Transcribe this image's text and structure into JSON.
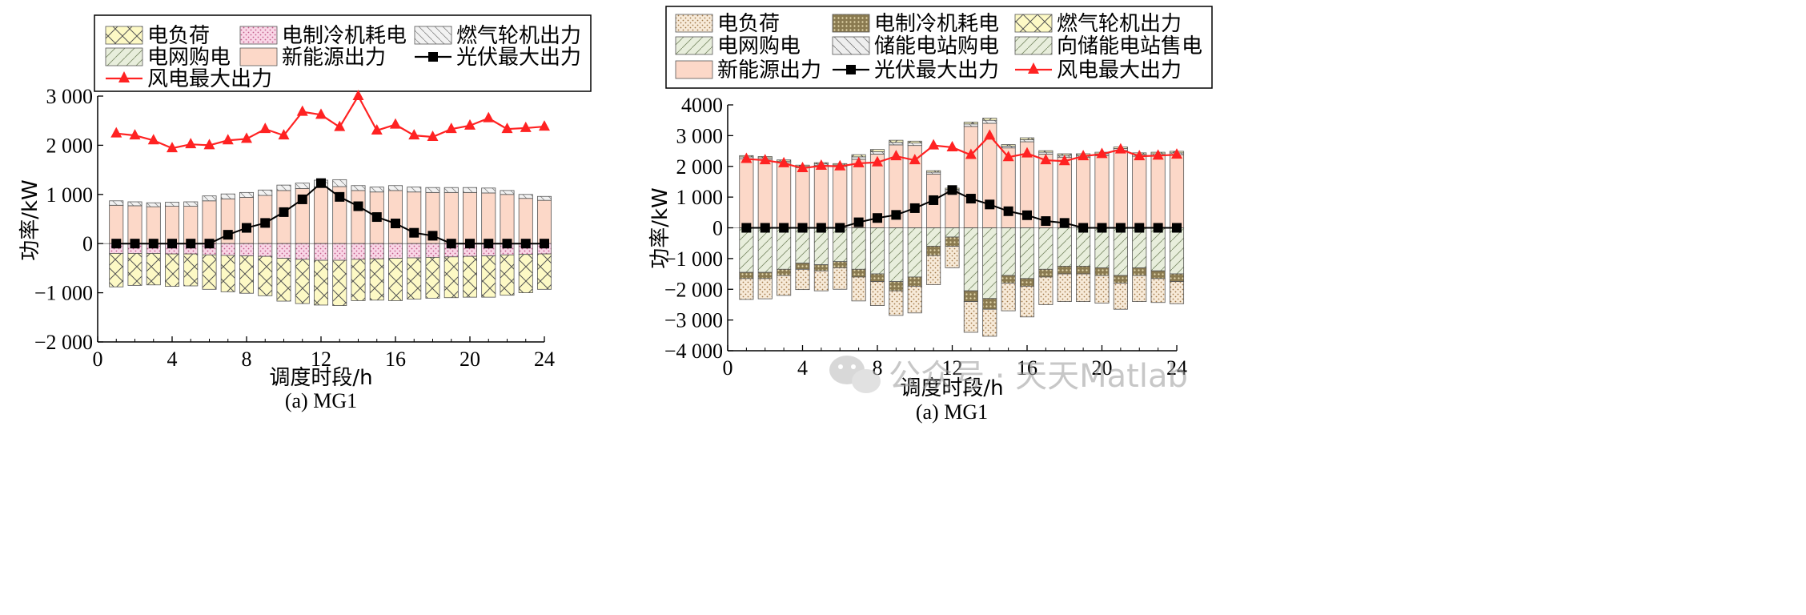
{
  "watermark": "公众号 · 天天Matlab",
  "chart_data": [
    {
      "type": "bar",
      "caption": "(a) MG1",
      "xlabel": "调度时段/h",
      "ylabel": "功率/kW",
      "xlim": [
        0,
        24
      ],
      "ylim": [
        -2000,
        3000
      ],
      "xticks": [
        0,
        4,
        8,
        12,
        16,
        20,
        24
      ],
      "xtick_labels": [
        "0",
        "4",
        "8",
        "12",
        "16",
        "20",
        "24"
      ],
      "yticks": [
        3000,
        2000,
        1000,
        0,
        -1000,
        -2000
      ],
      "ytick_labels": [
        "3 000",
        "2 000",
        "1 000",
        "0",
        "−1 000",
        "−2 000"
      ],
      "legend": [
        "电负荷",
        "电制冷机耗电",
        "燃气轮机出力",
        "电网购电",
        "新能源出力",
        "光伏最大出力",
        "风电最大出力"
      ],
      "x": [
        1,
        2,
        3,
        4,
        5,
        6,
        7,
        8,
        9,
        10,
        11,
        12,
        13,
        14,
        15,
        16,
        17,
        18,
        19,
        20,
        21,
        22,
        23,
        24
      ],
      "series": [
        {
          "name": "新能源出力",
          "kind": "bar-positive",
          "values": [
            780,
            770,
            750,
            760,
            760,
            870,
            910,
            940,
            980,
            1080,
            1120,
            1150,
            1160,
            1080,
            1050,
            1080,
            1050,
            1040,
            1040,
            1040,
            1030,
            1000,
            920,
            880
          ]
        },
        {
          "name": "燃气轮机出力",
          "kind": "bar-positive",
          "values": [
            90,
            80,
            80,
            80,
            90,
            100,
            100,
            100,
            110,
            110,
            110,
            140,
            140,
            100,
            100,
            100,
            100,
            100,
            100,
            100,
            100,
            80,
            80,
            80
          ]
        },
        {
          "name": "电制冷机耗电",
          "kind": "bar-negative",
          "values": [
            -200,
            -200,
            -200,
            -210,
            -210,
            -230,
            -240,
            -250,
            -260,
            -300,
            -320,
            -340,
            -340,
            -320,
            -310,
            -300,
            -290,
            -280,
            -270,
            -260,
            -250,
            -230,
            -220,
            -210
          ]
        },
        {
          "name": "电负荷",
          "kind": "bar-negative",
          "values": [
            -680,
            -650,
            -640,
            -660,
            -650,
            -700,
            -740,
            -760,
            -800,
            -870,
            -900,
            -910,
            -920,
            -840,
            -840,
            -860,
            -840,
            -830,
            -830,
            -830,
            -840,
            -820,
            -780,
            -720
          ]
        },
        {
          "name": "光伏最大出力",
          "kind": "line",
          "values": [
            0,
            0,
            0,
            0,
            0,
            0,
            180,
            320,
            420,
            640,
            900,
            1230,
            950,
            760,
            540,
            410,
            220,
            160,
            0,
            0,
            0,
            0,
            0,
            0
          ]
        },
        {
          "name": "风电最大出力",
          "kind": "line",
          "values": [
            2240,
            2200,
            2100,
            1940,
            2020,
            2000,
            2100,
            2130,
            2330,
            2200,
            2680,
            2620,
            2370,
            3000,
            2300,
            2420,
            2200,
            2170,
            2330,
            2400,
            2550,
            2330,
            2350,
            2380
          ]
        }
      ]
    },
    {
      "type": "bar",
      "caption": "(a) MG1",
      "xlabel": "调度时段/h",
      "ylabel": "功率/kW",
      "xlim": [
        0,
        24
      ],
      "ylim": [
        -4000,
        4000
      ],
      "xticks": [
        0,
        4,
        8,
        12,
        16,
        20,
        24
      ],
      "xtick_labels": [
        "0",
        "4",
        "8",
        "12",
        "16",
        "20",
        "24"
      ],
      "yticks": [
        4000,
        3000,
        2000,
        1000,
        0,
        -1000,
        -2000,
        -3000,
        -4000
      ],
      "ytick_labels": [
        "4000",
        "3 000",
        "2 000",
        "1 000",
        "0",
        "−1 000",
        "−2 000",
        "−3 000",
        "−4 000"
      ],
      "legend": [
        "电负荷",
        "电制冷机耗电",
        "燃气轮机出力",
        "电网购电",
        "储能电站购电",
        "向储能电站售电",
        "新能源出力",
        "光伏最大出力",
        "风电最大出力"
      ],
      "x": [
        1,
        2,
        3,
        4,
        5,
        6,
        7,
        8,
        9,
        10,
        11,
        12,
        13,
        14,
        15,
        16,
        17,
        18,
        19,
        20,
        21,
        22,
        23,
        24
      ],
      "series": [
        {
          "name": "新能源出力",
          "kind": "bar-positive",
          "values": [
            2250,
            2230,
            2120,
            1960,
            2030,
            2000,
            2230,
            2400,
            2700,
            2680,
            1750,
            1200,
            3300,
            3400,
            2600,
            2800,
            2400,
            2300,
            2300,
            2350,
            2520,
            2330,
            2350,
            2380
          ]
        },
        {
          "name": "储能电站购电",
          "kind": "bar-positive",
          "values": [
            60,
            50,
            50,
            40,
            50,
            50,
            80,
            80,
            80,
            80,
            60,
            50,
            80,
            100,
            60,
            70,
            60,
            60,
            60,
            60,
            60,
            60,
            60,
            60
          ]
        },
        {
          "name": "燃气轮机出力",
          "kind": "bar-positive",
          "values": [
            40,
            40,
            40,
            40,
            40,
            40,
            70,
            70,
            70,
            60,
            50,
            40,
            60,
            70,
            50,
            60,
            50,
            50,
            50,
            50,
            50,
            50,
            50,
            50
          ]
        },
        {
          "name": "向储能电站售电",
          "kind": "bar-negative",
          "values": [
            -1450,
            -1450,
            -1350,
            -1150,
            -1200,
            -1100,
            -1350,
            -1500,
            -1750,
            -1600,
            -600,
            -300,
            -2050,
            -2300,
            -1550,
            -1650,
            -1350,
            -1250,
            -1250,
            -1300,
            -1550,
            -1300,
            -1400,
            -1500
          ]
        },
        {
          "name": "电制冷机耗电",
          "kind": "bar-negative",
          "values": [
            -200,
            -200,
            -200,
            -200,
            -200,
            -200,
            -250,
            -250,
            -300,
            -300,
            -300,
            -300,
            -350,
            -350,
            -250,
            -250,
            -250,
            -250,
            -250,
            -250,
            -250,
            -250,
            -250,
            -250
          ]
        },
        {
          "name": "电负荷",
          "kind": "bar-negative",
          "values": [
            -680,
            -660,
            -650,
            -660,
            -650,
            -700,
            -780,
            -780,
            -800,
            -870,
            -950,
            -700,
            -1000,
            -880,
            -900,
            -1000,
            -900,
            -900,
            -900,
            -900,
            -850,
            -850,
            -780,
            -720
          ]
        },
        {
          "name": "光伏最大出力",
          "kind": "line",
          "values": [
            0,
            0,
            0,
            0,
            0,
            0,
            180,
            320,
            420,
            640,
            900,
            1230,
            950,
            760,
            540,
            410,
            220,
            160,
            0,
            0,
            0,
            0,
            0,
            0
          ]
        },
        {
          "name": "风电最大出力",
          "kind": "line",
          "values": [
            2240,
            2200,
            2100,
            1940,
            2020,
            2000,
            2100,
            2130,
            2330,
            2200,
            2680,
            2620,
            2370,
            3000,
            2300,
            2420,
            2200,
            2170,
            2330,
            2400,
            2550,
            2330,
            2350,
            2380
          ]
        }
      ]
    }
  ],
  "legend_styles": {
    "电负荷": {
      "fill": "#fdf9c5",
      "pattern": "cross"
    },
    "电制冷机耗电": {
      "fill": "#f9d6e6",
      "pattern": "dots-pink"
    },
    "燃气轮机出力": {
      "fill": "#f2f2f2",
      "pattern": "hatch-light"
    },
    "电网购电": {
      "fill": "#e8eedc",
      "pattern": "hatch-green"
    },
    "新能源出力": {
      "fill": "#fcd8c8",
      "pattern": "none"
    },
    "储能电站购电": {
      "fill": "#eeeeee",
      "pattern": "hatch-back"
    },
    "向储能电站售电": {
      "fill": "#e9efdf",
      "pattern": "hatch-green"
    },
    "光伏最大出力": {
      "color": "#000000",
      "marker": "square"
    },
    "风电最大出力": {
      "color": "#ff2222",
      "marker": "triangle"
    }
  }
}
